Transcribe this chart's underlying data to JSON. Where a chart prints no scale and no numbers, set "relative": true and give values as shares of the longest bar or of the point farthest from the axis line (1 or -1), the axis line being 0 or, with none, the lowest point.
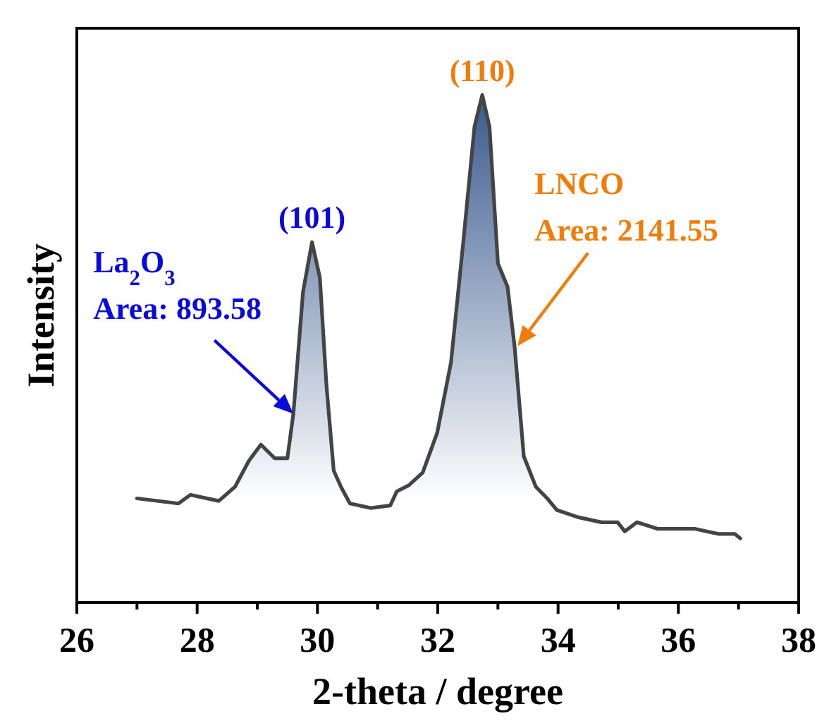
{
  "chart_data": {
    "type": "line",
    "xlabel": "2-theta / degree",
    "ylabel": "Intensity",
    "relative": true,
    "xlim": [
      26,
      38
    ],
    "xticks": [
      26,
      {
        "value": 27,
        "label": null
      },
      28,
      {
        "value": 29,
        "label": null
      },
      30,
      {
        "value": 31,
        "label": null
      },
      32,
      {
        "value": 33,
        "label": null
      },
      34,
      {
        "value": 35,
        "label": null
      },
      36,
      {
        "value": 37,
        "label": null
      },
      38
    ],
    "series": [
      {
        "type": "area",
        "color": "#3a5a8c",
        "x": [
          28.36,
          28.63,
          28.86,
          29.06,
          29.29,
          29.5,
          29.6,
          29.76,
          29.91,
          30.04,
          30.15,
          30.27,
          30.39,
          30.54
        ],
        "values": [
          0.2,
          0.228,
          0.279,
          0.311,
          0.284,
          0.284,
          0.372,
          0.612,
          0.71,
          0.64,
          0.427,
          0.26,
          0.228,
          0.195
        ]
      },
      {
        "type": "area",
        "color": "#3a5a8c",
        "x": [
          31.21,
          31.32,
          31.52,
          31.75,
          31.99,
          32.22,
          32.42,
          32.61,
          32.74,
          32.86,
          33.0,
          33.16,
          33.28,
          33.43,
          33.63,
          33.82
        ],
        "values": [
          0.191,
          0.219,
          0.231,
          0.256,
          0.334,
          0.473,
          0.705,
          0.937,
          1,
          0.937,
          0.668,
          0.622,
          0.501,
          0.288,
          0.228,
          0.205
        ]
      },
      {
        "color": "#444444",
        "x": [
          27.0,
          27.69,
          27.89,
          28.36,
          28.63,
          28.86,
          29.06,
          29.29,
          29.5,
          29.6,
          29.76,
          29.91,
          30.04,
          30.15,
          30.27,
          30.39,
          30.54,
          30.89,
          31.21,
          31.32,
          31.52,
          31.75,
          31.99,
          32.22,
          32.42,
          32.61,
          32.74,
          32.86,
          33.0,
          33.16,
          33.28,
          33.43,
          33.63,
          33.82,
          33.98,
          34.33,
          34.72,
          34.99,
          35.11,
          35.31,
          35.66,
          36.28,
          36.67,
          36.94,
          37.03
        ],
        "values": [
          0.205,
          0.195,
          0.212,
          0.2,
          0.228,
          0.279,
          0.311,
          0.284,
          0.284,
          0.372,
          0.612,
          0.71,
          0.64,
          0.427,
          0.26,
          0.228,
          0.195,
          0.186,
          0.191,
          0.219,
          0.231,
          0.256,
          0.334,
          0.473,
          0.705,
          0.937,
          1,
          0.937,
          0.668,
          0.622,
          0.501,
          0.288,
          0.228,
          0.205,
          0.182,
          0.168,
          0.158,
          0.158,
          0.14,
          0.158,
          0.145,
          0.145,
          0.135,
          0.135,
          0.126
        ]
      }
    ],
    "annotations": [
      {
        "text": "(101)",
        "x": 29.91,
        "y": 0.71
      },
      {
        "text": "(110)",
        "x": 32.74,
        "y": 1
      },
      {
        "text": "La$_{2}$O$_{3}$\nArea: 893.58",
        "x": 29.6,
        "y": 0.372
      },
      "LNCO\nArea: 2141.55"
    ]
  }
}
